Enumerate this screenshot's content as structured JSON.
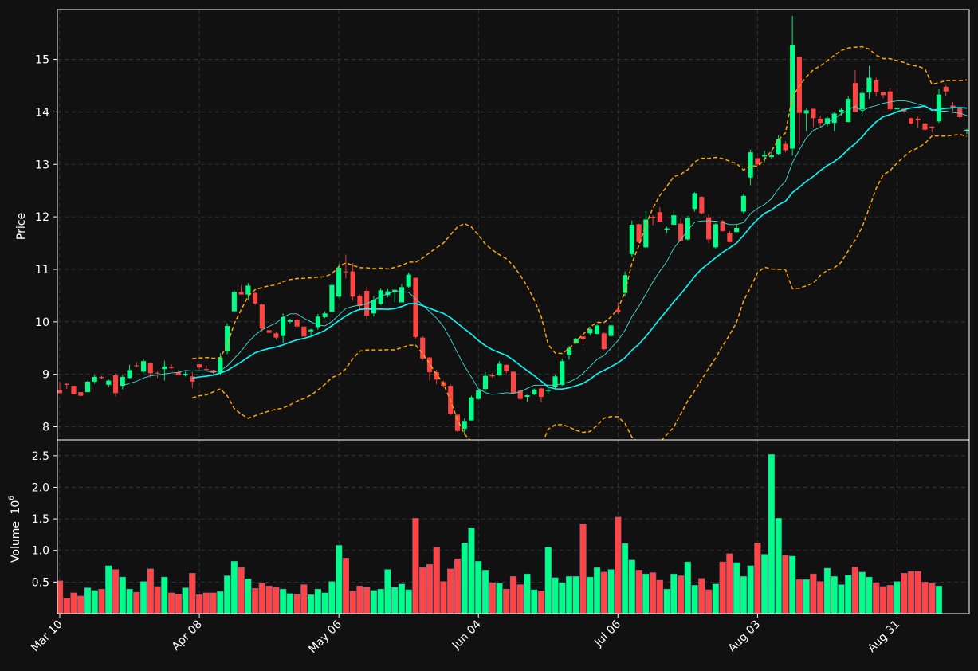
{
  "chart_data": {
    "type": "candlestick",
    "title": "",
    "price_panel": {
      "ylabel": "Price",
      "ylim": [
        7.75,
        15.95
      ],
      "yticks": [
        8,
        9,
        10,
        11,
        12,
        13,
        14,
        15
      ],
      "ytick_labels": [
        "8",
        "9",
        "10",
        "11",
        "12",
        "13",
        "14",
        "15"
      ],
      "grid": true
    },
    "volume_panel": {
      "ylabel": "Volume",
      "scale_label": "10",
      "scale_exponent": "6",
      "ylim": [
        0.0,
        2.75
      ],
      "yticks": [
        0.5,
        1.0,
        1.5,
        2.0,
        2.5
      ],
      "ytick_labels": [
        "0.5",
        "1.0",
        "1.5",
        "2.0",
        "2.5"
      ],
      "grid": true
    },
    "x_axis": {
      "tick_indices": [
        0,
        20,
        40,
        60,
        80,
        100,
        120
      ],
      "tick_labels": [
        "Mar 10",
        "Apr 08",
        "May 06",
        "Jun 04",
        "Jul 06",
        "Aug 03",
        "Aug 31"
      ]
    },
    "colors": {
      "background": "#111111",
      "up": "#00ff88",
      "down": "#ff4444",
      "ma_fast": "#40e0d0",
      "ma_slow": "#00ffff",
      "bollinger": "#ffa500",
      "grid": "#3a3a3a",
      "axis": "#ffffff"
    },
    "overlays": [
      "moving-average-fast",
      "moving-average-slow",
      "bollinger-upper",
      "bollinger-lower"
    ],
    "candles_ohlc": [
      [
        8.7,
        8.86,
        8.63,
        8.64
      ],
      [
        8.82,
        8.83,
        8.72,
        8.8
      ],
      [
        8.78,
        8.78,
        8.62,
        8.62
      ],
      [
        8.66,
        8.66,
        8.58,
        8.59
      ],
      [
        8.66,
        8.88,
        8.66,
        8.86
      ],
      [
        8.86,
        8.99,
        8.82,
        8.95
      ],
      [
        8.95,
        8.97,
        8.91,
        8.93
      ],
      [
        8.8,
        8.9,
        8.75,
        8.88
      ],
      [
        8.98,
        9.02,
        8.58,
        8.64
      ],
      [
        8.78,
        8.98,
        8.71,
        8.95
      ],
      [
        8.93,
        9.18,
        8.92,
        9.08
      ],
      [
        9.17,
        9.23,
        9.13,
        9.16
      ],
      [
        9.05,
        9.3,
        9.03,
        9.25
      ],
      [
        9.21,
        9.23,
        8.94,
        9.02
      ],
      [
        9.03,
        9.06,
        8.93,
        9.02
      ],
      [
        9.1,
        9.26,
        8.88,
        9.15
      ],
      [
        9.14,
        9.19,
        9.1,
        9.12
      ],
      [
        9.04,
        9.08,
        8.98,
        8.98
      ],
      [
        8.98,
        9.05,
        8.96,
        9.01
      ],
      [
        8.96,
        9.05,
        8.74,
        8.86
      ],
      [
        9.19,
        9.19,
        9.1,
        9.13
      ],
      [
        9.1,
        9.17,
        9.05,
        9.08
      ],
      [
        9.08,
        9.09,
        9.0,
        9.03
      ],
      [
        9.03,
        9.4,
        8.98,
        9.32
      ],
      [
        9.44,
        9.97,
        9.38,
        9.92
      ],
      [
        10.2,
        10.6,
        10.2,
        10.57
      ],
      [
        10.57,
        10.69,
        10.52,
        10.52
      ],
      [
        10.52,
        10.74,
        10.42,
        10.69
      ],
      [
        10.55,
        10.56,
        10.32,
        10.35
      ],
      [
        10.33,
        10.35,
        9.81,
        9.87
      ],
      [
        9.84,
        9.84,
        9.79,
        9.79
      ],
      [
        9.78,
        9.82,
        9.66,
        9.7
      ],
      [
        9.73,
        10.16,
        9.6,
        10.09
      ],
      [
        10.0,
        10.06,
        9.97,
        10.03
      ],
      [
        10.04,
        10.16,
        9.88,
        9.91
      ],
      [
        9.91,
        9.91,
        9.72,
        9.72
      ],
      [
        9.82,
        9.87,
        9.74,
        9.85
      ],
      [
        9.9,
        10.15,
        9.85,
        10.1
      ],
      [
        10.09,
        10.2,
        10.07,
        10.16
      ],
      [
        10.19,
        10.76,
        10.19,
        10.7
      ],
      [
        10.48,
        11.1,
        10.46,
        11.03
      ],
      [
        10.96,
        11.28,
        10.83,
        10.95
      ],
      [
        10.96,
        11.12,
        10.4,
        10.48
      ],
      [
        10.5,
        10.52,
        10.22,
        10.3
      ],
      [
        10.59,
        10.67,
        10.05,
        10.12
      ],
      [
        10.16,
        10.49,
        10.1,
        10.42
      ],
      [
        10.34,
        10.64,
        10.32,
        10.6
      ],
      [
        10.51,
        10.62,
        10.47,
        10.58
      ],
      [
        10.57,
        10.63,
        10.37,
        10.61
      ],
      [
        10.37,
        10.72,
        10.37,
        10.66
      ],
      [
        10.67,
        10.94,
        10.65,
        10.9
      ],
      [
        10.84,
        10.84,
        9.68,
        9.71
      ],
      [
        9.7,
        9.73,
        9.27,
        9.3
      ],
      [
        9.32,
        9.33,
        8.88,
        9.04
      ],
      [
        9.04,
        9.09,
        8.81,
        8.9
      ],
      [
        8.85,
        8.88,
        8.75,
        8.78
      ],
      [
        8.78,
        8.81,
        8.22,
        8.24
      ],
      [
        8.23,
        8.23,
        7.9,
        7.92
      ],
      [
        7.96,
        8.16,
        7.86,
        8.11
      ],
      [
        8.12,
        8.59,
        8.12,
        8.56
      ],
      [
        8.53,
        8.72,
        8.52,
        8.69
      ],
      [
        8.72,
        9.04,
        8.68,
        8.97
      ],
      [
        8.98,
        9.02,
        8.93,
        8.96
      ],
      [
        8.98,
        9.25,
        8.97,
        9.2
      ],
      [
        9.18,
        9.19,
        9.02,
        9.06
      ],
      [
        9.05,
        9.05,
        8.62,
        8.64
      ],
      [
        8.69,
        8.71,
        8.51,
        8.53
      ],
      [
        8.57,
        8.61,
        8.48,
        8.6
      ],
      [
        8.62,
        8.73,
        8.6,
        8.71
      ],
      [
        8.73,
        8.74,
        8.47,
        8.57
      ],
      [
        8.68,
        8.77,
        8.62,
        8.7
      ],
      [
        8.76,
        8.99,
        8.72,
        8.96
      ],
      [
        8.8,
        9.3,
        8.78,
        9.25
      ],
      [
        9.36,
        9.54,
        9.28,
        9.5
      ],
      [
        9.59,
        9.69,
        9.58,
        9.68
      ],
      [
        9.72,
        9.77,
        9.56,
        9.67
      ],
      [
        9.78,
        9.9,
        9.74,
        9.86
      ],
      [
        9.77,
        9.95,
        9.76,
        9.93
      ],
      [
        9.78,
        9.8,
        9.46,
        9.48
      ],
      [
        9.73,
        9.97,
        9.71,
        9.93
      ],
      [
        10.23,
        10.37,
        10.15,
        10.19
      ],
      [
        10.55,
        10.96,
        10.48,
        10.89
      ],
      [
        11.29,
        11.93,
        11.24,
        11.85
      ],
      [
        11.86,
        11.87,
        11.5,
        11.52
      ],
      [
        11.42,
        12.11,
        11.41,
        11.95
      ],
      [
        12.0,
        12.03,
        11.84,
        11.98
      ],
      [
        12.09,
        12.18,
        11.91,
        11.91
      ],
      [
        11.76,
        11.81,
        11.69,
        11.78
      ],
      [
        11.85,
        12.12,
        11.84,
        12.03
      ],
      [
        11.87,
        11.98,
        11.53,
        11.54
      ],
      [
        11.57,
        12.02,
        11.55,
        11.98
      ],
      [
        12.15,
        12.47,
        12.1,
        12.45
      ],
      [
        12.38,
        12.39,
        12.05,
        12.07
      ],
      [
        11.99,
        12.05,
        11.5,
        11.57
      ],
      [
        11.42,
        11.88,
        11.4,
        11.86
      ],
      [
        11.92,
        11.94,
        11.72,
        11.73
      ],
      [
        11.69,
        11.73,
        11.51,
        11.52
      ],
      [
        11.71,
        11.85,
        11.7,
        11.79
      ],
      [
        12.1,
        12.44,
        12.06,
        12.4
      ],
      [
        12.75,
        13.28,
        12.6,
        13.23
      ],
      [
        13.12,
        13.12,
        12.98,
        13.0
      ],
      [
        13.15,
        13.26,
        13.04,
        13.18
      ],
      [
        13.14,
        13.25,
        13.11,
        13.17
      ],
      [
        13.2,
        13.55,
        13.18,
        13.48
      ],
      [
        13.39,
        13.44,
        13.23,
        13.27
      ],
      [
        13.3,
        15.83,
        13.17,
        15.28
      ],
      [
        15.05,
        15.06,
        13.38,
        13.98
      ],
      [
        13.97,
        14.06,
        13.63,
        14.03
      ],
      [
        14.06,
        14.06,
        13.71,
        13.88
      ],
      [
        13.87,
        13.93,
        13.72,
        13.79
      ],
      [
        13.77,
        13.92,
        13.72,
        13.88
      ],
      [
        13.79,
        13.99,
        13.63,
        13.97
      ],
      [
        13.99,
        14.07,
        13.93,
        14.04
      ],
      [
        13.81,
        14.3,
        13.8,
        14.25
      ],
      [
        14.55,
        14.8,
        13.99,
        14.0
      ],
      [
        14.05,
        14.46,
        13.91,
        14.36
      ],
      [
        14.37,
        14.88,
        14.25,
        14.65
      ],
      [
        14.6,
        14.65,
        14.3,
        14.38
      ],
      [
        14.38,
        14.38,
        14.26,
        14.32
      ],
      [
        14.39,
        14.45,
        14.01,
        14.05
      ],
      [
        14.05,
        14.11,
        13.99,
        14.08
      ],
      [
        14.06,
        14.06,
        13.98,
        14.01
      ],
      [
        13.88,
        13.89,
        13.76,
        13.78
      ],
      [
        13.87,
        13.91,
        13.7,
        13.84
      ],
      [
        13.78,
        13.8,
        13.64,
        13.66
      ],
      [
        13.72,
        13.73,
        13.61,
        13.69
      ],
      [
        13.82,
        14.43,
        13.79,
        14.33
      ],
      [
        14.48,
        14.51,
        14.31,
        14.39
      ],
      [
        14.12,
        14.19,
        13.99,
        14.07
      ],
      [
        14.09,
        14.1,
        13.88,
        13.9
      ],
      [
        13.64,
        13.68,
        13.58,
        13.66
      ]
    ],
    "volume": [
      0.52,
      0.25,
      0.33,
      0.28,
      0.41,
      0.37,
      0.39,
      0.76,
      0.7,
      0.58,
      0.39,
      0.34,
      0.51,
      0.71,
      0.43,
      0.58,
      0.33,
      0.31,
      0.41,
      0.64,
      0.3,
      0.33,
      0.33,
      0.35,
      0.6,
      0.83,
      0.73,
      0.55,
      0.4,
      0.48,
      0.44,
      0.42,
      0.39,
      0.32,
      0.31,
      0.46,
      0.3,
      0.39,
      0.33,
      0.51,
      1.08,
      0.88,
      0.36,
      0.44,
      0.42,
      0.37,
      0.39,
      0.7,
      0.42,
      0.47,
      0.38,
      1.51,
      0.73,
      0.78,
      1.05,
      0.51,
      0.71,
      0.87,
      1.12,
      1.36,
      0.83,
      0.69,
      0.49,
      0.48,
      0.39,
      0.59,
      0.46,
      0.63,
      0.38,
      0.36,
      1.05,
      0.57,
      0.49,
      0.59,
      0.59,
      1.42,
      0.58,
      0.73,
      0.66,
      0.7,
      1.53,
      1.11,
      0.85,
      0.69,
      0.63,
      0.65,
      0.53,
      0.39,
      0.63,
      0.6,
      0.82,
      0.45,
      0.56,
      0.38,
      0.47,
      0.82,
      0.95,
      0.81,
      0.59,
      0.76,
      1.12,
      0.94,
      2.52,
      1.51,
      0.93,
      0.91,
      0.54,
      0.54,
      0.63,
      0.51,
      0.72,
      0.59,
      0.46,
      0.61,
      0.74,
      0.66,
      0.58,
      0.49,
      0.43,
      0.45,
      0.51,
      0.64,
      0.67,
      0.67,
      0.5,
      0.48,
      0.44
    ]
  }
}
